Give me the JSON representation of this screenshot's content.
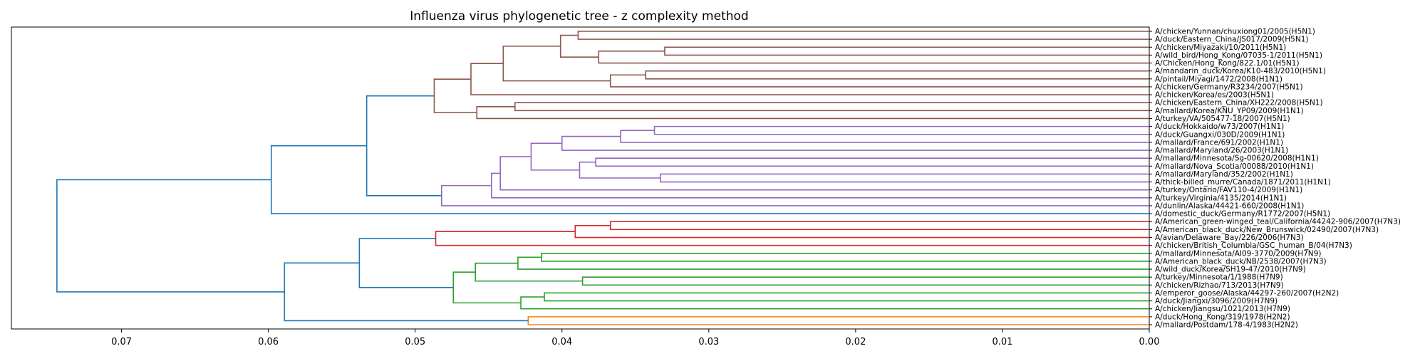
{
  "chart_data": {
    "type": "dendrogram",
    "title": "Influenza virus phylogenetic tree - z complexity method",
    "xlabel": "",
    "ylabel": "",
    "xlim": [
      0.0775,
      0.0
    ],
    "x_ticks": [
      0.07,
      0.06,
      0.05,
      0.04,
      0.03,
      0.02,
      0.01,
      0.0
    ],
    "x_tick_labels": [
      "0.07",
      "0.06",
      "0.05",
      "0.04",
      "0.03",
      "0.02",
      "0.01",
      "0.00"
    ],
    "grid": false,
    "colors": {
      "link": "#1f77b4",
      "c1": "#8c564b",
      "c2": "#9467bd",
      "c3": "#d62728",
      "c4": "#2ca02c",
      "c5": "#ff7f0e"
    },
    "leaves": [
      "A/chicken/Yunnan/chuxiong01/2005(H5N1)",
      "A/duck/Eastern_China/JS017/2009(H5N1)",
      "A/chicken/Miyazaki/10/2011(H5N1)",
      "A/wild_bird/Hong_Kong/07035-1/2011(H5N1)",
      "A/Chicken/Hong_Kong/822.1/01(H5N1)",
      "A/mandarin_duck/Korea/K10-483/2010(H5N1)",
      "A/pintail/Miyagi/1472/2008(H1N1)",
      "A/chicken/Germany/R3234/2007(H5N1)",
      "A/chicken/Korea/es/2003(H5N1)",
      "A/chicken/Eastern_China/XH222/2008(H5N1)",
      "A/mallard/Korea/KNU_YP09/2009(H1N1)",
      "A/turkey/VA/505477-18/2007(H5N1)",
      "A/duck/Hokkaido/w73/2007(H1N1)",
      "A/duck/Guangxi/030D/2009(H1N1)",
      "A/mallard/France/691/2002(H1N1)",
      "A/mallard/Maryland/26/2003(H1N1)",
      "A/mallard/Minnesota/Sg-00620/2008(H1N1)",
      "A/mallard/Nova_Scotia/00088/2010(H1N1)",
      "A/mallard/Maryland/352/2002(H1N1)",
      "A/thick-billed_murre/Canada/1871/2011(H1N1)",
      "A/turkey/Ontario/FAV110-4/2009(H1N1)",
      "A/turkey/Virginia/4135/2014(H1N1)",
      "A/dunlin/Alaska/44421-660/2008(H1N1)",
      "A/domestic_duck/Germany/R1772/2007(H5N1)",
      "A/American_green-winged_teal/California/44242-906/2007(H7N3)",
      "A/American_black_duck/New_Brunswick/02490/2007(H7N3)",
      "A/avian/Delaware_Bay/226/2006(H7N3)",
      "A/chicken/British_Columbia/GSC_human_B/04(H7N3)",
      "A/mallard/Minnesota/AI09-3770/2009(H7N9)",
      "A/American_black_duck/NB/2538/2007(H7N3)",
      "A/wild_duck/Korea/SH19-47/2010(H7N9)",
      "A/turkey/Minnesota/1/1988(H7N9)",
      "A/chicken/Rizhao/713/2013(H7N9)",
      "A/emperor_goose/Alaska/44297-260/2007(H2N2)",
      "A/duck/Jiangxi/3096/2009(H7N9)",
      "A/chicken/Jiangsu/1021/2013(H7N9)",
      "A/duck/Hong_Kong/319/1978(H2N2)",
      "A/mallard/Postdam/178-4/1983(H2N2)"
    ],
    "merges": [
      {
        "a": 0,
        "b": 1,
        "height": 0.0389,
        "color": "c1"
      },
      {
        "a": 2,
        "b": 3,
        "height": 0.033,
        "color": "c1"
      },
      {
        "a": 4,
        "b": "m1",
        "height": 0.0375,
        "color": "c1"
      },
      {
        "a": "m0",
        "b": "m2",
        "height": 0.0401,
        "color": "c1"
      },
      {
        "a": 5,
        "b": 6,
        "height": 0.0343,
        "color": "c1"
      },
      {
        "a": "m4",
        "b": 7,
        "height": 0.0367,
        "color": "c1"
      },
      {
        "a": "m3",
        "b": "m5",
        "height": 0.044,
        "color": "c1"
      },
      {
        "a": "m6",
        "b": 8,
        "height": 0.0462,
        "color": "c1"
      },
      {
        "a": 9,
        "b": 10,
        "height": 0.0432,
        "color": "c1"
      },
      {
        "a": "m8",
        "b": 11,
        "height": 0.0458,
        "color": "c1"
      },
      {
        "a": "m7",
        "b": "m9",
        "height": 0.0487,
        "color": "c1"
      },
      {
        "a": 12,
        "b": 13,
        "height": 0.0337,
        "color": "c2"
      },
      {
        "a": "m11",
        "b": 14,
        "height": 0.036,
        "color": "c2"
      },
      {
        "a": "m12",
        "b": 15,
        "height": 0.04,
        "color": "c2"
      },
      {
        "a": 16,
        "b": 17,
        "height": 0.0377,
        "color": "c2"
      },
      {
        "a": 18,
        "b": 19,
        "height": 0.0333,
        "color": "c2"
      },
      {
        "a": "m14",
        "b": "m15",
        "height": 0.0388,
        "color": "c2"
      },
      {
        "a": "m13",
        "b": "m16",
        "height": 0.0421,
        "color": "c2"
      },
      {
        "a": "m17",
        "b": 20,
        "height": 0.0442,
        "color": "c2"
      },
      {
        "a": "m18",
        "b": 21,
        "height": 0.0448,
        "color": "c2"
      },
      {
        "a": "m19",
        "b": 22,
        "height": 0.0482,
        "color": "c2"
      },
      {
        "a": "m10",
        "b": "m20",
        "height": 0.0533,
        "color": "link"
      },
      {
        "a": "m21",
        "b": 23,
        "height": 0.0598,
        "color": "link"
      },
      {
        "a": 24,
        "b": 25,
        "height": 0.0367,
        "color": "c3"
      },
      {
        "a": "m23",
        "b": 26,
        "height": 0.0391,
        "color": "c3"
      },
      {
        "a": "m24",
        "b": 27,
        "height": 0.0486,
        "color": "c3"
      },
      {
        "a": 28,
        "b": 29,
        "height": 0.0414,
        "color": "c4"
      },
      {
        "a": "m26",
        "b": 30,
        "height": 0.043,
        "color": "c4"
      },
      {
        "a": 31,
        "b": 32,
        "height": 0.0386,
        "color": "c4"
      },
      {
        "a": "m27",
        "b": "m28",
        "height": 0.0459,
        "color": "c4"
      },
      {
        "a": 33,
        "b": 34,
        "height": 0.0412,
        "color": "c4"
      },
      {
        "a": "m30",
        "b": 35,
        "height": 0.0428,
        "color": "c4"
      },
      {
        "a": "m29",
        "b": "m31",
        "height": 0.0474,
        "color": "c4"
      },
      {
        "a": "m25",
        "b": "m32",
        "height": 0.0538,
        "color": "link"
      },
      {
        "a": 36,
        "b": 37,
        "height": 0.0423,
        "color": "c5"
      },
      {
        "a": "m33",
        "b": "m34",
        "height": 0.0589,
        "color": "link"
      },
      {
        "a": "m22",
        "b": "m35",
        "height": 0.0744,
        "color": "link"
      }
    ]
  }
}
